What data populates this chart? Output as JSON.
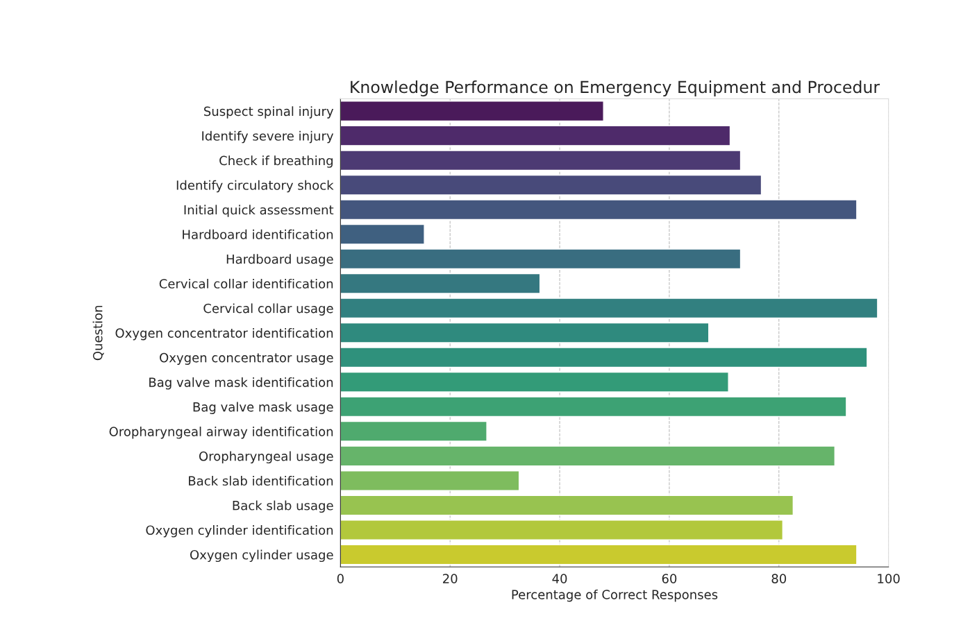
{
  "chart_data": {
    "type": "bar",
    "orientation": "horizontal",
    "title": "Knowledge Performance on Emergency Equipment and Procedur",
    "xlabel": "Percentage of Correct Responses",
    "ylabel": "Question",
    "categories": [
      "Suspect spinal injury",
      "Identify severe injury",
      "Check if breathing",
      "Identify circulatory shock",
      "Initial quick assessment",
      "Hardboard identification",
      "Hardboard usage",
      "Cervical collar identification",
      "Cervical collar usage",
      "Oxygen concentrator identification",
      "Oxygen concentrator usage",
      "Bag valve mask identification",
      "Bag valve mask usage",
      "Oropharyngeal airway identification",
      "Oropharyngeal usage",
      "Back slab identification",
      "Back slab usage",
      "Oxygen cylinder identification",
      "Oxygen cylinder usage"
    ],
    "values": [
      48.0,
      71.1,
      73.0,
      76.8,
      94.2,
      15.3,
      73.0,
      36.4,
      98.0,
      67.2,
      96.1,
      70.8,
      92.3,
      26.7,
      90.2,
      32.6,
      82.6,
      80.7,
      94.2
    ],
    "colors": [
      "#4a1a5a",
      "#4e2a6a",
      "#4c3a73",
      "#484a7a",
      "#44567e",
      "#3f6080",
      "#396d80",
      "#357880",
      "#328080",
      "#2f8a7e",
      "#2f917c",
      "#339b78",
      "#3da274",
      "#4faa6e",
      "#66b46a",
      "#7ebc5e",
      "#98c350",
      "#b2c83c",
      "#c9ca2e"
    ],
    "xlim": [
      0,
      100
    ],
    "xticks": [
      0,
      20,
      40,
      60,
      80,
      100
    ],
    "grid": "x"
  }
}
